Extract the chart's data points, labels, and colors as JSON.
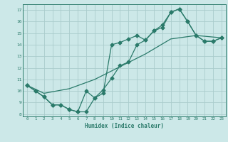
{
  "title": "",
  "xlabel": "Humidex (Indice chaleur)",
  "bg_color": "#cce8e8",
  "grid_color": "#aacccc",
  "line_color": "#2a7a6a",
  "xlim": [
    -0.5,
    23.5
  ],
  "ylim": [
    7.8,
    17.5
  ],
  "xticks": [
    0,
    1,
    2,
    3,
    4,
    5,
    6,
    7,
    8,
    9,
    10,
    11,
    12,
    13,
    14,
    15,
    16,
    17,
    18,
    19,
    20,
    21,
    22,
    23
  ],
  "yticks": [
    8,
    9,
    10,
    11,
    12,
    13,
    14,
    15,
    16,
    17
  ],
  "series1_x": [
    0,
    1,
    2,
    3,
    4,
    5,
    6,
    7,
    8,
    9,
    10,
    11,
    12,
    13,
    14,
    15,
    16,
    17,
    18,
    19,
    20,
    21,
    22,
    23
  ],
  "series1_y": [
    10.5,
    10.0,
    9.5,
    8.8,
    8.8,
    8.4,
    8.2,
    10.0,
    9.4,
    10.1,
    11.1,
    12.2,
    12.5,
    14.0,
    14.4,
    15.2,
    15.7,
    16.8,
    17.1,
    16.0,
    14.8,
    14.3,
    14.3,
    14.6
  ],
  "series2_x": [
    0,
    1,
    2,
    3,
    4,
    5,
    6,
    7,
    8,
    9,
    10,
    11,
    12,
    13,
    14,
    15,
    16,
    17,
    18,
    19,
    20,
    21,
    22,
    23
  ],
  "series2_y": [
    10.5,
    10.0,
    9.5,
    8.8,
    8.8,
    8.4,
    8.2,
    8.2,
    9.4,
    9.8,
    14.0,
    14.2,
    14.5,
    14.8,
    14.4,
    15.2,
    15.5,
    16.8,
    17.1,
    16.0,
    14.8,
    14.3,
    14.3,
    14.6
  ],
  "series3_x": [
    0,
    2,
    5,
    8,
    11,
    14,
    17,
    20,
    23
  ],
  "series3_y": [
    10.5,
    9.8,
    10.2,
    11.0,
    12.1,
    13.2,
    14.5,
    14.8,
    14.6
  ]
}
